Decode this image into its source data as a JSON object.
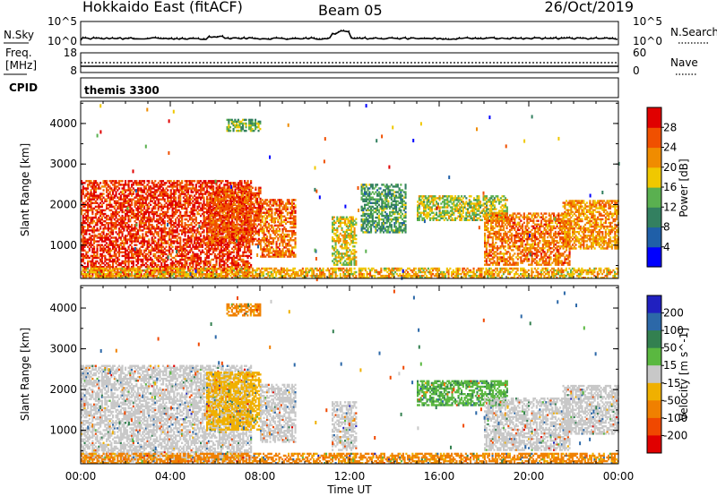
{
  "header": {
    "title": "Hokkaido East (fitACF)",
    "beam": "Beam 05",
    "date": "26/Oct/2019"
  },
  "strip_panels": {
    "nsky": {
      "label": "N.Sky",
      "ytick_top": "10^5",
      "ytick_bottom": "10^0",
      "right_ytick_top": "10^5",
      "right_ytick_bottom": "10^0",
      "right_label": "N.Search"
    },
    "freq": {
      "label_line1": "Freq.",
      "label_line2": "[MHz]",
      "ytick_top": "18",
      "ytick_bottom": "8",
      "right_ytick_top": "60",
      "right_ytick_bottom": "0",
      "right_label": "Nave"
    },
    "cpid": {
      "label": "CPID",
      "program": "themis 3300"
    }
  },
  "chart_data": [
    {
      "type": "heatmap",
      "name": "power",
      "ylabel": "Slant Range [km]",
      "yticks": [
        1000,
        2000,
        3000,
        4000
      ],
      "ylim": [
        180,
        4550
      ],
      "xlabel": "Time UT",
      "xticks": [
        "00:00",
        "04:00",
        "08:00",
        "12:00",
        "16:00",
        "20:00",
        "00:00"
      ],
      "xlim_hours": [
        0,
        24
      ],
      "colorbar": {
        "label": "Power [dB]",
        "ticks": [
          "4",
          "8",
          "12",
          "16",
          "20",
          "24",
          "28"
        ],
        "colors": [
          "#0000ff",
          "#1f5fa8",
          "#338060",
          "#5ab050",
          "#f0c800",
          "#f08c00",
          "#f05000",
          "#e00000"
        ]
      },
      "regions": [
        {
          "t": [
            0.0,
            7.6
          ],
          "r": [
            220,
            2600
          ],
          "value": 28
        },
        {
          "t": [
            5.6,
            8.0
          ],
          "r": [
            1000,
            2400
          ],
          "value": 26
        },
        {
          "t": [
            6.5,
            8.0
          ],
          "r": [
            3800,
            4100
          ],
          "value": 14
        },
        {
          "t": [
            8.0,
            9.6
          ],
          "r": [
            700,
            2100
          ],
          "value": 24
        },
        {
          "t": [
            11.2,
            12.3
          ],
          "r": [
            500,
            1700
          ],
          "value": 18
        },
        {
          "t": [
            12.5,
            14.5
          ],
          "r": [
            1300,
            2500
          ],
          "value": 12
        },
        {
          "t": [
            15.0,
            19.0
          ],
          "r": [
            1600,
            2200
          ],
          "value": 16
        },
        {
          "t": [
            18.0,
            21.8
          ],
          "r": [
            500,
            1800
          ],
          "value": 24
        },
        {
          "t": [
            21.5,
            24.0
          ],
          "r": [
            900,
            2100
          ],
          "value": 22
        },
        {
          "t": [
            0.0,
            24.0
          ],
          "r": [
            180,
            450
          ],
          "value": 20
        }
      ]
    },
    {
      "type": "heatmap",
      "name": "velocity",
      "ylabel": "Slant Range [km]",
      "yticks": [
        1000,
        2000,
        3000,
        4000
      ],
      "ylim": [
        180,
        4550
      ],
      "xlabel": "Time UT",
      "xticks": [
        "00:00",
        "04:00",
        "08:00",
        "12:00",
        "16:00",
        "20:00",
        "00:00"
      ],
      "xlim_hours": [
        0,
        24
      ],
      "colorbar": {
        "label": "Velocity [m s^-1]",
        "ticks": [
          "200",
          "100",
          "50",
          "15",
          "-15",
          "-50",
          "-100",
          "-200"
        ],
        "colors": [
          "#2020c0",
          "#2c68a8",
          "#338050",
          "#5ab840",
          "#c8c8c8",
          "#f0b000",
          "#f08000",
          "#f04800",
          "#e00000"
        ]
      },
      "regions": [
        {
          "t": [
            0.0,
            7.6
          ],
          "r": [
            220,
            2600
          ],
          "value": 0
        },
        {
          "t": [
            5.6,
            8.0
          ],
          "r": [
            1000,
            2400
          ],
          "value": -30
        },
        {
          "t": [
            6.5,
            8.0
          ],
          "r": [
            3800,
            4100
          ],
          "value": -60
        },
        {
          "t": [
            8.0,
            9.6
          ],
          "r": [
            700,
            2100
          ],
          "value": 0
        },
        {
          "t": [
            11.2,
            12.3
          ],
          "r": [
            500,
            1700
          ],
          "value": 0
        },
        {
          "t": [
            15.0,
            19.0
          ],
          "r": [
            1600,
            2200
          ],
          "value": 40
        },
        {
          "t": [
            18.0,
            21.8
          ],
          "r": [
            500,
            1800
          ],
          "value": 0
        },
        {
          "t": [
            21.5,
            24.0
          ],
          "r": [
            900,
            2100
          ],
          "value": 0
        },
        {
          "t": [
            0.0,
            24.0
          ],
          "r": [
            180,
            450
          ],
          "value": -60
        }
      ]
    }
  ]
}
